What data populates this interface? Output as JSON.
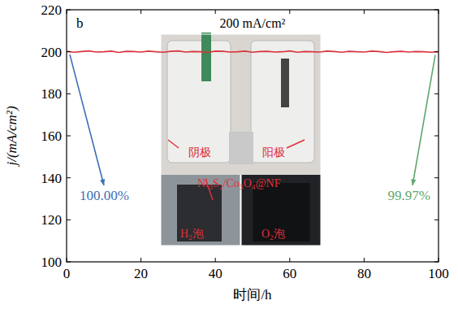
{
  "chart_data": {
    "type": "line",
    "panel_label": "b",
    "x_label": "时间/h",
    "y_label": "j/(mA/cm²)",
    "x": [
      0,
      2,
      4,
      6,
      8,
      10,
      12,
      14,
      16,
      18,
      20,
      22,
      24,
      26,
      28,
      30,
      32,
      34,
      36,
      38,
      40,
      42,
      44,
      46,
      48,
      50,
      52,
      54,
      56,
      58,
      60,
      62,
      64,
      66,
      68,
      70,
      72,
      74,
      76,
      78,
      80,
      82,
      84,
      86,
      88,
      90,
      92,
      94,
      96,
      98,
      100
    ],
    "series": [
      {
        "color": "#d9343c",
        "line_style": "solid",
        "values": [
          200.2,
          199.8,
          200.1,
          200.4,
          199.9,
          200.0,
          200.3,
          199.7,
          200.2,
          200.1,
          199.9,
          200.3,
          200.0,
          199.8,
          200.2,
          200.4,
          199.9,
          200.1,
          200.0,
          199.7,
          200.3,
          200.2,
          199.9,
          200.0,
          200.3,
          199.8,
          200.1,
          200.2,
          199.9,
          200.0,
          200.4,
          199.8,
          200.1,
          200.0,
          199.9,
          200.3,
          200.1,
          199.8,
          200.2,
          200.0,
          199.9,
          200.3,
          200.1,
          199.7,
          200.0,
          200.2,
          199.9,
          200.1,
          200.0,
          199.8,
          200.0
        ]
      }
    ],
    "xlim": [
      0,
      100
    ],
    "ylim": [
      100,
      220
    ],
    "xticks": [
      0,
      20,
      40,
      60,
      80,
      100
    ],
    "yticks": [
      100,
      120,
      140,
      160,
      180,
      200,
      220
    ],
    "grid": false,
    "annotations": [
      {
        "text": "200 mA/cm²",
        "color": "#000000"
      },
      {
        "text": "100.00%",
        "color": "#3b6fb6"
      },
      {
        "text": "99.97%",
        "color": "#5ea86e"
      }
    ],
    "inset_labels": [
      {
        "text": "阴极",
        "color": "#e0303a"
      },
      {
        "text": "阳极",
        "color": "#e0303a"
      },
      {
        "text": "Ni₃S₂/Co₃O₄@NF",
        "color": "#e0303a"
      },
      {
        "text": "H₂泡",
        "color": "#e0303a"
      },
      {
        "text": "O₂泡",
        "color": "#e0303a"
      }
    ]
  }
}
